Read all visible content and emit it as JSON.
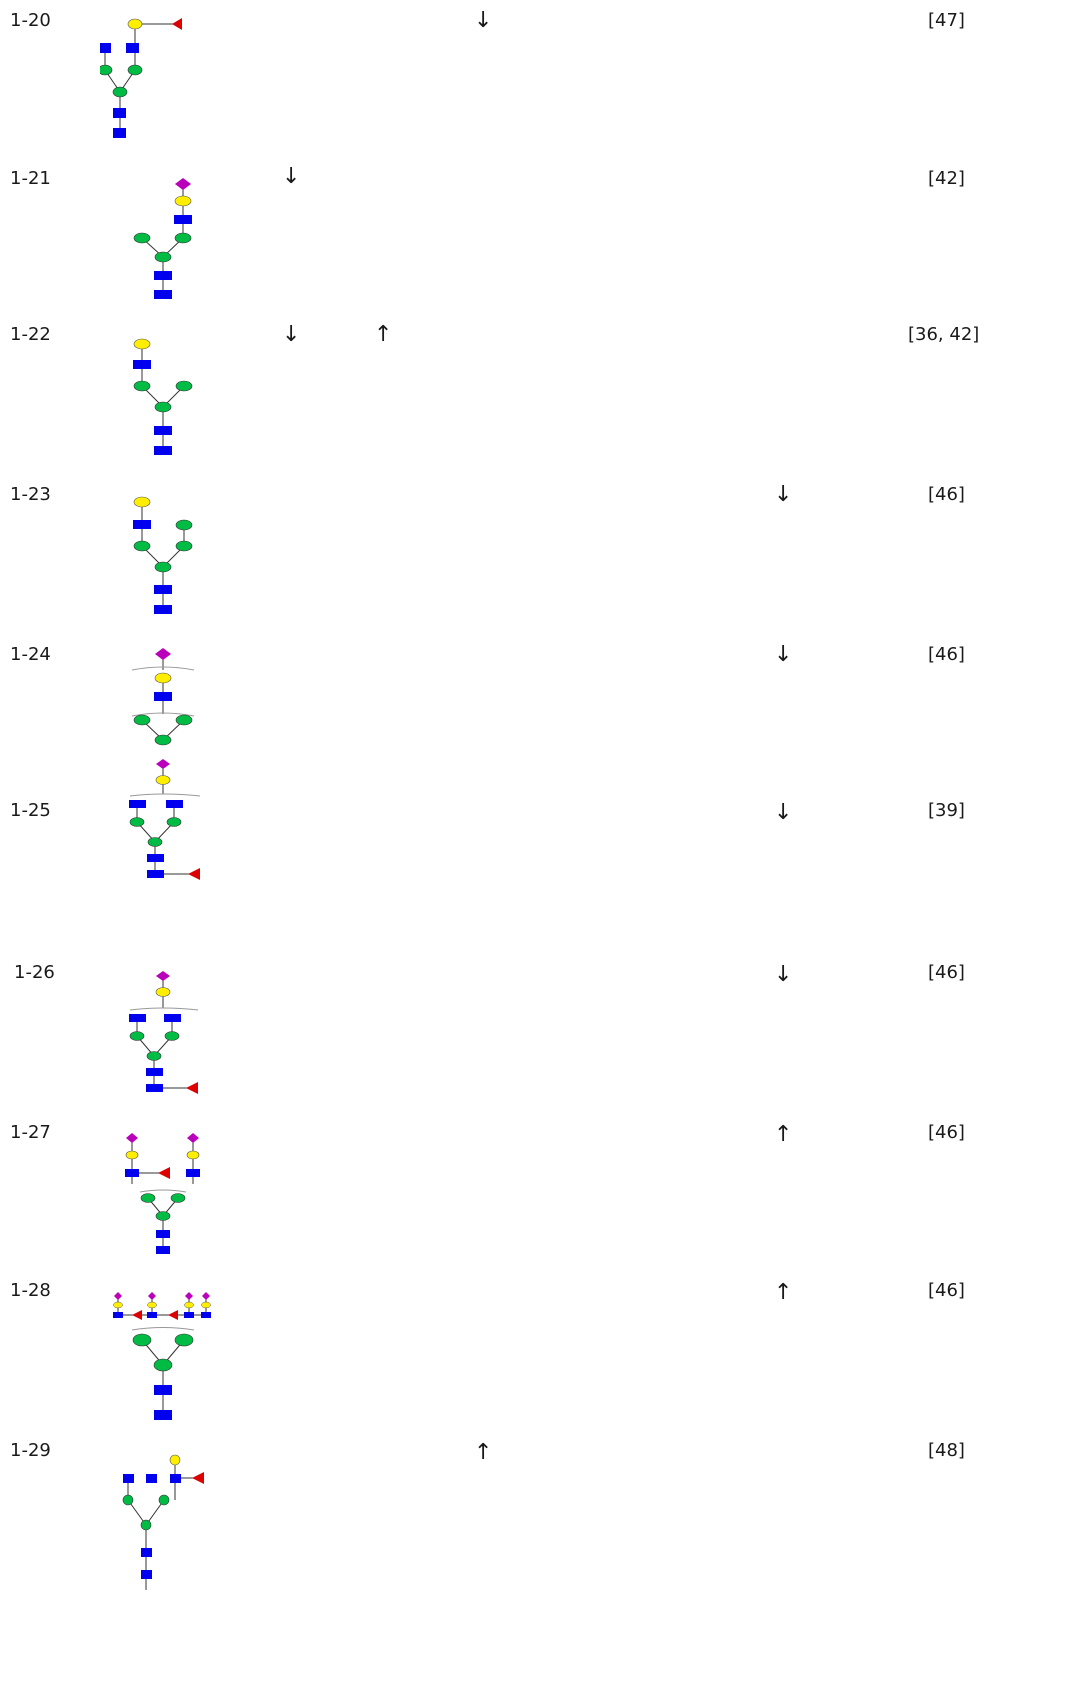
{
  "colors": {
    "glcnac": "#0000ee",
    "mannose": "#00bb44",
    "galactose": "#ffee00",
    "fucose": "#dd0000",
    "sialic": "#bb00bb"
  },
  "rows": [
    {
      "id": "1-20",
      "arrows": [
        "↓"
      ],
      "ref": "[47]"
    },
    {
      "id": "1-21",
      "arrows": [
        "↓"
      ],
      "ref": "[42]"
    },
    {
      "id": "1-22",
      "arrows": [
        "↓",
        "↑"
      ],
      "ref": "[36, 42]"
    },
    {
      "id": "1-23",
      "arrows": [
        "↓"
      ],
      "ref": "[46]"
    },
    {
      "id": "1-24",
      "arrows": [
        "↓"
      ],
      "ref": "[46]"
    },
    {
      "id": "1-25",
      "arrows": [
        "↓"
      ],
      "ref": "[39]"
    },
    {
      "id": "1-26",
      "arrows": [
        "↓"
      ],
      "ref": "[46]"
    },
    {
      "id": "1-27",
      "arrows": [
        "↑"
      ],
      "ref": "[46]"
    },
    {
      "id": "1-28",
      "arrows": [
        "↑"
      ],
      "ref": "[46]"
    },
    {
      "id": "1-29",
      "arrows": [
        "↑"
      ],
      "ref": "[48]"
    }
  ]
}
